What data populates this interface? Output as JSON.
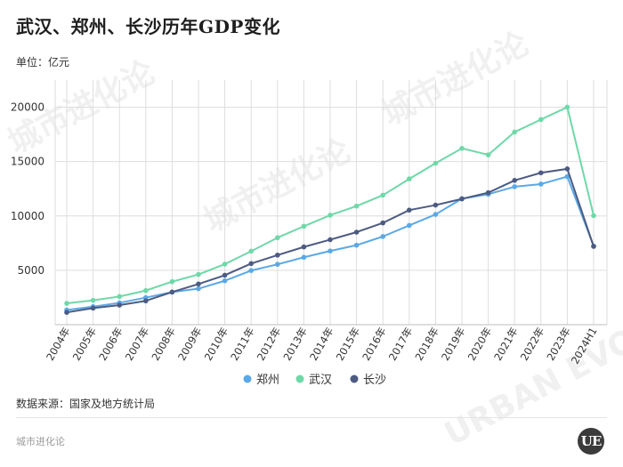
{
  "title": "武汉、郑州、长沙历年GDP变化",
  "unit_label": "单位：亿元",
  "source": "数据来源：国家及地方统计局",
  "brand": "城市进化论",
  "watermark_text": "城市进化论",
  "watermark_sub": "URBAN EVOLUTION",
  "logo_text": "UE",
  "chart_data": {
    "type": "line",
    "categories": [
      "2004年",
      "2005年",
      "2006年",
      "2007年",
      "2008年",
      "2009年",
      "2010年",
      "2011年",
      "2012年",
      "2013年",
      "2014年",
      "2015年",
      "2016年",
      "2017年",
      "2018年",
      "2019年",
      "2020年",
      "2021年",
      "2022年",
      "2023年",
      "2024H1"
    ],
    "ylim": [
      0,
      22500
    ],
    "yticks": [
      5000,
      10000,
      15000,
      20000
    ],
    "grid": true,
    "legend_position": "bottom",
    "series": [
      {
        "name": "郑州",
        "color": "#5aa9e6",
        "values": [
          1350,
          1660,
          2010,
          2490,
          3000,
          3310,
          4040,
          4980,
          5550,
          6200,
          6780,
          7310,
          8110,
          9130,
          10140,
          11590,
          12000,
          12690,
          12930,
          13620,
          7230
        ]
      },
      {
        "name": "武汉",
        "color": "#6fd8a8",
        "values": [
          1960,
          2240,
          2590,
          3140,
          3960,
          4620,
          5570,
          6760,
          8000,
          9050,
          10070,
          10910,
          11910,
          13410,
          14850,
          16220,
          15620,
          17720,
          18870,
          20010,
          10030
        ]
      },
      {
        "name": "长沙",
        "color": "#4d5b82",
        "values": [
          1130,
          1520,
          1800,
          2190,
          3000,
          3740,
          4550,
          5620,
          6400,
          7150,
          7820,
          8510,
          9360,
          10540,
          11000,
          11570,
          12140,
          13270,
          13970,
          14330,
          7200
        ]
      }
    ]
  }
}
